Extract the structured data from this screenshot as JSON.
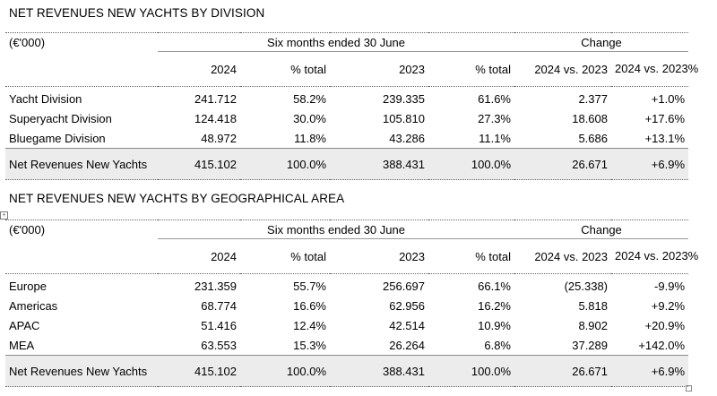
{
  "div_table": {
    "title": "NET REVENUES NEW YACHTS BY DIVISION",
    "unit": "(€'000)",
    "period_label": "Six months ended 30 June",
    "change_label": "Change",
    "cols": [
      "2024",
      "% total",
      "2023",
      "% total",
      "2024 vs. 2023",
      "2024 vs. 2023%"
    ],
    "rows": [
      {
        "label": "Yacht Division",
        "v2024": "241.712",
        "p2024": "58.2%",
        "v2023": "239.335",
        "p2023": "61.6%",
        "chg": "2.377",
        "pct": "+1.0%"
      },
      {
        "label": "Superyacht Division",
        "v2024": "124.418",
        "p2024": "30.0%",
        "v2023": "105.810",
        "p2023": "27.3%",
        "chg": "18.608",
        "pct": "+17.6%"
      },
      {
        "label": "Bluegame Division",
        "v2024": "48.972",
        "p2024": "11.8%",
        "v2023": "43.286",
        "p2023": "11.1%",
        "chg": "5.686",
        "pct": "+13.1%"
      }
    ],
    "total": {
      "label": "Net Revenues New Yachts",
      "v2024": "415.102",
      "p2024": "100.0%",
      "v2023": "388.431",
      "p2023": "100.0%",
      "chg": "26.671",
      "pct": "+6.9%"
    }
  },
  "geo_table": {
    "title": "NET REVENUES NEW YACHTS BY GEOGRAPHICAL AREA",
    "unit": "(€'000)",
    "period_label": "Six months ended 30 June",
    "change_label": "Change",
    "cols": [
      "2024",
      "% total",
      "2023",
      "% total",
      "2024 vs. 2023",
      "2024 vs. 2023%"
    ],
    "rows": [
      {
        "label": "Europe",
        "v2024": "231.359",
        "p2024": "55.7%",
        "v2023": "256.697",
        "p2023": "66.1%",
        "chg": "(25.338)",
        "pct": "-9.9%"
      },
      {
        "label": "Americas",
        "v2024": "68.774",
        "p2024": "16.6%",
        "v2023": "62.956",
        "p2023": "16.2%",
        "chg": "5.818",
        "pct": "+9.2%"
      },
      {
        "label": "APAC",
        "v2024": "51.416",
        "p2024": "12.4%",
        "v2023": "42.514",
        "p2023": "10.9%",
        "chg": "8.902",
        "pct": "+20.9%"
      },
      {
        "label": "MEA",
        "v2024": "63.553",
        "p2024": "15.3%",
        "v2023": "26.264",
        "p2023": "6.8%",
        "chg": "37.289",
        "pct": "+142.0%"
      }
    ],
    "total": {
      "label": "Net Revenues New Yachts",
      "v2024": "415.102",
      "p2024": "100.0%",
      "v2023": "388.431",
      "p2023": "100.0%",
      "chg": "26.671",
      "pct": "+6.9%"
    }
  },
  "icons": {
    "anchor": "table-move-handle-icon",
    "resize": "table-resize-handle-icon"
  }
}
